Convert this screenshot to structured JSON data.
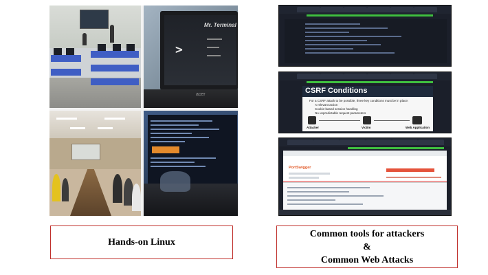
{
  "captions": {
    "left": "Hands-on Linux",
    "right_line1": "Common tools for attackers",
    "right_line2": "&",
    "right_line3": "Common Web Attacks"
  },
  "laptop_screen": {
    "prompt_symbol": ">",
    "app_title": "Mr. Terminal",
    "brand": "acer"
  },
  "slide": {
    "title": "CSRF Conditions",
    "intro": "For a CSRF attack to be possible, three key conditions must be in place:",
    "bullets": [
      "A relevant action",
      "Cookie-based session handling",
      "No unpredictable request parameters"
    ],
    "labels": [
      "Attacker",
      "Victim",
      "Web Application"
    ]
  },
  "portswigger": {
    "logo": "PortSwigger"
  },
  "colors": {
    "caption_border": "#c0302c",
    "progress_green": "#3fbf3f",
    "burp_orange": "#e25b2a"
  }
}
